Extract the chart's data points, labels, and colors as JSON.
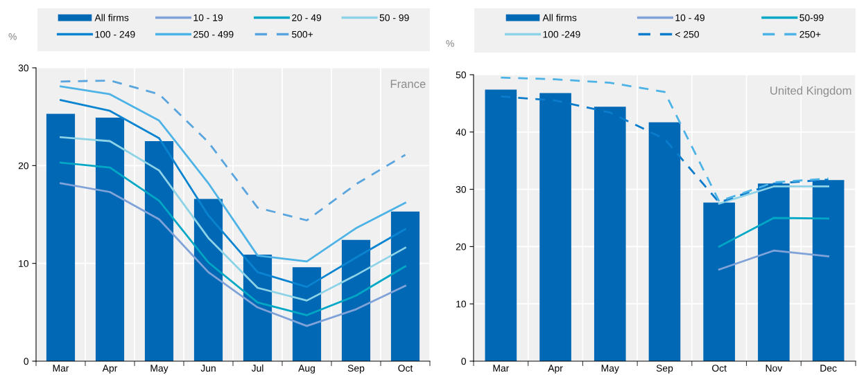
{
  "chart_data": [
    {
      "type": "bar",
      "ylabel": "%",
      "annotations": [
        "France"
      ],
      "categories": [
        "Mar",
        "Apr",
        "May",
        "Jun",
        "Jul",
        "Aug",
        "Sep",
        "Oct"
      ],
      "ylim": [
        0,
        30
      ],
      "yticks": [
        0,
        10,
        20,
        30
      ],
      "grid": true,
      "legend": "top",
      "series": [
        {
          "name": "All firms",
          "color": "#0068b4",
          "values": [
            25.3,
            24.9,
            22.5,
            16.6,
            10.9,
            9.6,
            12.4,
            15.3
          ]
        },
        {
          "name": "10 - 19",
          "type": "line",
          "color": "#7fa3d9",
          "values": [
            18.2,
            17.3,
            14.5,
            9.1,
            5.5,
            3.6,
            5.3,
            7.7
          ]
        },
        {
          "name": "20 - 49",
          "type": "line",
          "color": "#00a8c6",
          "values": [
            20.3,
            19.8,
            16.4,
            10.1,
            6.0,
            4.7,
            6.7,
            9.7
          ]
        },
        {
          "name": "50 - 99",
          "type": "line",
          "color": "#8dd3e8",
          "values": [
            22.9,
            22.5,
            19.5,
            12.6,
            7.5,
            6.2,
            8.8,
            11.6
          ]
        },
        {
          "name": "100 - 249",
          "type": "line",
          "color": "#0a84d0",
          "values": [
            26.7,
            25.6,
            22.8,
            14.9,
            9.1,
            7.6,
            10.6,
            13.5
          ]
        },
        {
          "name": "250 - 499",
          "type": "line",
          "color": "#4db3e6",
          "values": [
            28.1,
            27.3,
            24.6,
            18.2,
            10.8,
            10.2,
            13.6,
            16.2
          ]
        },
        {
          "name": "500+",
          "type": "line",
          "line_style": "dashed",
          "color": "#5aa5de",
          "values": [
            28.6,
            28.7,
            27.3,
            22.4,
            15.7,
            14.4,
            18.1,
            21.1
          ]
        }
      ]
    },
    {
      "type": "bar",
      "ylabel": "%",
      "annotations": [
        "United Kingdom"
      ],
      "categories": [
        "Mar",
        "Apr",
        "May",
        "Sep",
        "Oct",
        "Nov",
        "Dec"
      ],
      "ylim": [
        0,
        50
      ],
      "yticks": [
        0,
        10,
        20,
        30,
        40,
        50
      ],
      "grid": true,
      "legend": "top",
      "series": [
        {
          "name": "All firms",
          "color": "#0068b4",
          "values": [
            47.4,
            46.8,
            44.4,
            41.7,
            27.7,
            31.0,
            31.6
          ]
        },
        {
          "name": "10 - 49",
          "type": "line",
          "color": "#7fa3d9",
          "values": [
            null,
            null,
            null,
            null,
            16.0,
            19.3,
            18.3
          ]
        },
        {
          "name": "50-99",
          "type": "line",
          "color": "#00a8c6",
          "values": [
            null,
            null,
            null,
            null,
            20.0,
            25.0,
            24.9
          ]
        },
        {
          "name": "100 -249",
          "type": "line",
          "color": "#8dd3e8",
          "values": [
            null,
            null,
            null,
            null,
            27.5,
            30.5,
            30.5
          ]
        },
        {
          "name": "< 250",
          "type": "line",
          "line_style": "dashed",
          "color": "#0b7ccc",
          "values": [
            46.2,
            45.5,
            43.4,
            38.8,
            27.7,
            31.0,
            31.7
          ]
        },
        {
          "name": "250+",
          "type": "line",
          "line_style": "dashed",
          "color": "#4db3e6",
          "values": [
            49.5,
            49.2,
            48.6,
            47.0,
            27.9,
            31.2,
            31.9
          ]
        }
      ]
    }
  ]
}
